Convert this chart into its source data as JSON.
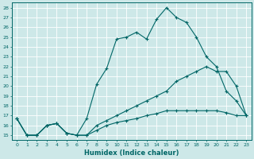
{
  "xlabel": "Humidex (Indice chaleur)",
  "background_color": "#cde8e8",
  "grid_color": "#b0d0d0",
  "line_color": "#006666",
  "xlim": [
    -0.5,
    23.5
  ],
  "ylim": [
    14.5,
    28.5
  ],
  "yticks": [
    15,
    16,
    17,
    18,
    19,
    20,
    21,
    22,
    23,
    24,
    25,
    26,
    27,
    28
  ],
  "xticks": [
    0,
    1,
    2,
    3,
    4,
    5,
    6,
    7,
    8,
    9,
    10,
    11,
    12,
    13,
    14,
    15,
    16,
    17,
    18,
    19,
    20,
    21,
    22,
    23
  ],
  "line1_x": [
    0,
    1,
    2,
    3,
    4,
    5,
    6,
    7,
    8,
    9,
    10,
    11,
    12,
    13,
    14,
    15,
    16,
    17,
    18,
    19,
    20,
    21,
    22,
    23
  ],
  "line1_y": [
    16.7,
    15.0,
    15.0,
    16.0,
    16.2,
    15.2,
    15.0,
    16.7,
    20.2,
    21.8,
    24.8,
    25.0,
    25.5,
    24.8,
    26.8,
    28.0,
    27.0,
    26.5,
    25.0,
    23.0,
    22.0,
    19.5,
    18.5,
    17.0
  ],
  "line2_x": [
    0,
    1,
    2,
    3,
    4,
    5,
    6,
    7,
    8,
    9,
    10,
    11,
    12,
    13,
    14,
    15,
    16,
    17,
    18,
    19,
    20,
    21,
    22,
    23
  ],
  "line2_y": [
    16.7,
    15.0,
    15.0,
    16.0,
    16.2,
    15.2,
    15.0,
    15.0,
    16.0,
    16.5,
    17.0,
    17.5,
    18.0,
    18.5,
    19.0,
    19.5,
    20.5,
    21.0,
    21.5,
    22.0,
    21.5,
    21.5,
    20.0,
    17.0
  ],
  "line3_x": [
    0,
    1,
    2,
    3,
    4,
    5,
    6,
    7,
    8,
    9,
    10,
    11,
    12,
    13,
    14,
    15,
    16,
    17,
    18,
    19,
    20,
    21,
    22,
    23
  ],
  "line3_y": [
    16.7,
    15.0,
    15.0,
    16.0,
    16.2,
    15.2,
    15.0,
    15.0,
    15.5,
    16.0,
    16.3,
    16.5,
    16.7,
    17.0,
    17.2,
    17.5,
    17.5,
    17.5,
    17.5,
    17.5,
    17.5,
    17.3,
    17.0,
    17.0
  ]
}
